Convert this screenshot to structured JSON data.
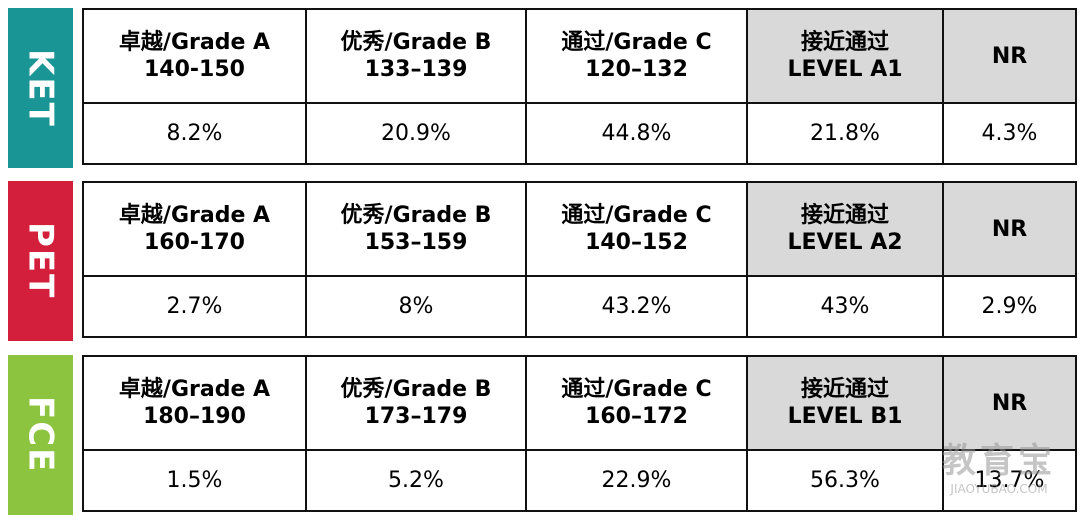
{
  "sections": [
    {
      "label": "KET",
      "color": "#1a9596",
      "headers": [
        {
          "title": "卓越/Grade A",
          "range": "140-150"
        },
        {
          "title": "优秀/Grade B",
          "range": "133–139"
        },
        {
          "title": "通过/Grade C",
          "range": "120–132"
        },
        {
          "title": "接近通过",
          "range": "LEVEL A1"
        },
        {
          "title": "NR"
        }
      ],
      "values": [
        "8.2%",
        "20.9%",
        "44.8%",
        "21.8%",
        "4.3%"
      ]
    },
    {
      "label": "PET",
      "color": "#d31f3c",
      "headers": [
        {
          "title": "卓越/Grade A",
          "range": "160-170"
        },
        {
          "title": "优秀/Grade B",
          "range": "153–159"
        },
        {
          "title": "通过/Grade C",
          "range": "140–152"
        },
        {
          "title": "接近通过",
          "range": "LEVEL A2"
        },
        {
          "title": "NR"
        }
      ],
      "values": [
        "2.7%",
        "8%",
        "43.2%",
        "43%",
        "2.9%"
      ]
    },
    {
      "label": "FCE",
      "color": "#8cc43f",
      "headers": [
        {
          "title": "卓越/Grade A",
          "range": "180–190"
        },
        {
          "title": "优秀/Grade B",
          "range": "173–179"
        },
        {
          "title": "通过/Grade C",
          "range": "160–172"
        },
        {
          "title": "接近通过",
          "range": "LEVEL B1"
        },
        {
          "title": "NR"
        }
      ],
      "values": [
        "1.5%",
        "5.2%",
        "22.9%",
        "56.3%",
        "13.7%"
      ]
    }
  ],
  "watermark": {
    "brand": "教育宝",
    "site": "JIAOYUBAO.COM"
  }
}
